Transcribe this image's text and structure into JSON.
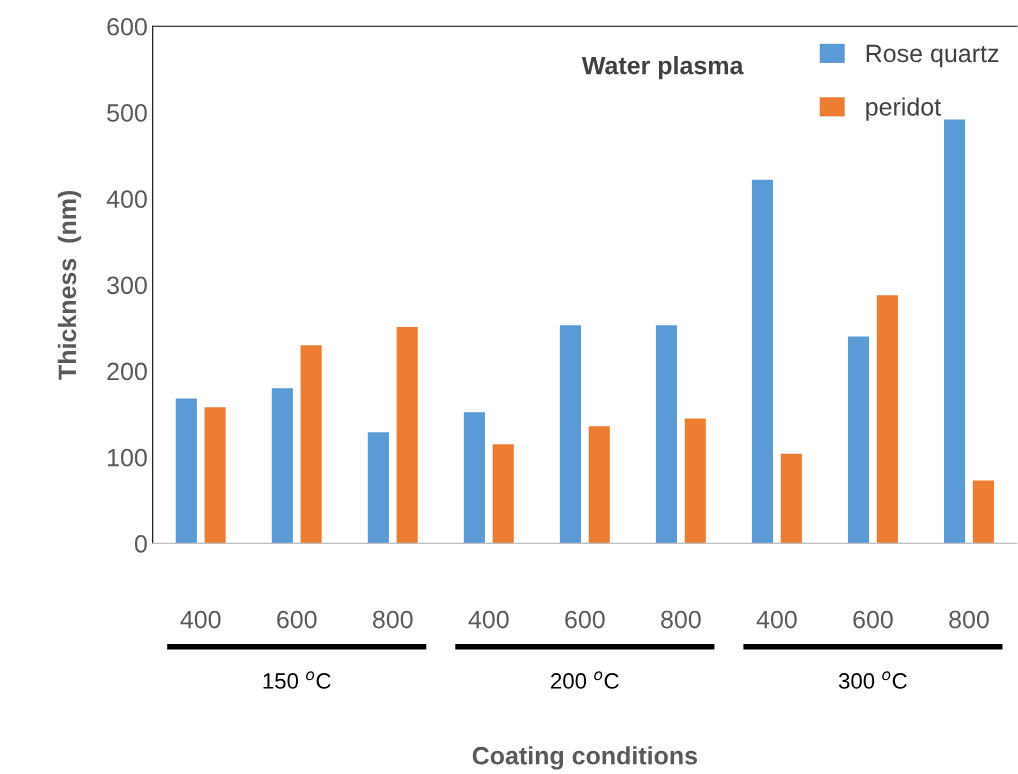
{
  "chart_data": {
    "type": "bar",
    "title": "Water plasma",
    "xlabel": "Coating conditions",
    "ylabel": "Thickness  (nm)",
    "categories": [
      "400",
      "600",
      "800",
      "400",
      "600",
      "800",
      "400",
      "600",
      "800"
    ],
    "series": [
      {
        "name": "Rose quartz",
        "color": "#5b9bd5",
        "values": [
          168,
          180,
          129,
          152,
          253,
          253,
          422,
          240,
          492
        ]
      },
      {
        "name": "peridot",
        "color": "#ed7d31",
        "values": [
          158,
          230,
          251,
          115,
          136,
          145,
          104,
          288,
          73
        ]
      }
    ],
    "ylim": [
      0,
      600
    ],
    "yticks": [
      0,
      100,
      200,
      300,
      400,
      500,
      600
    ],
    "grid": false,
    "legend": "top right",
    "annotations": [
      "150 $^{o}$C",
      "200 $^{o}$C",
      "300 $^{o}$C"
    ]
  }
}
